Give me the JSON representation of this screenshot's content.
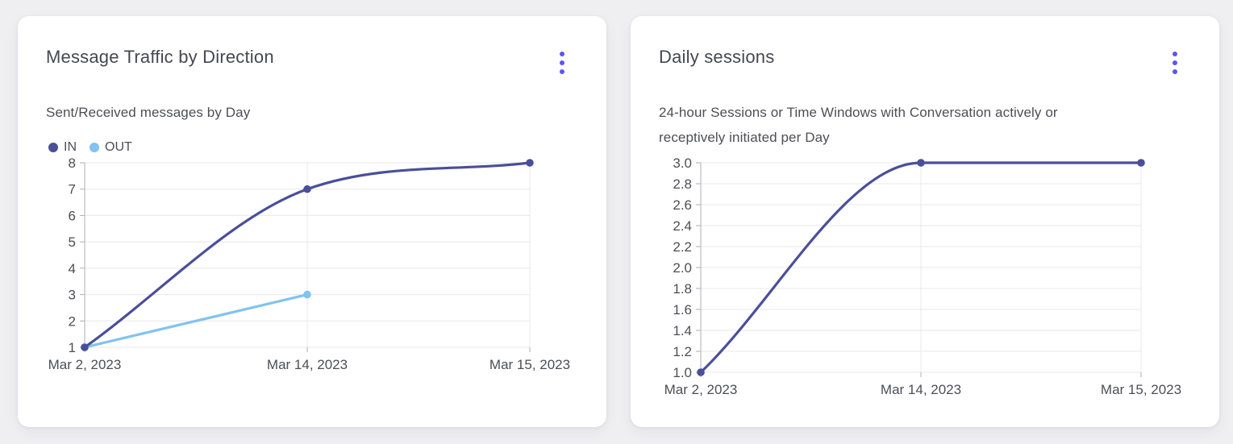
{
  "theme": {
    "page_bg": "#efeff2",
    "card_bg": "#ffffff",
    "title_color": "#464752",
    "text_color": "#4d4e57",
    "menu_dot_color": "#5b55f2",
    "grid_color": "#e8e8eb",
    "axis_color": "#aeaeb8",
    "icons": {
      "card_menu": "kebab-menu-icon"
    }
  },
  "chart_data": [
    {
      "type": "line",
      "title": "Message Traffic by Direction",
      "subtitle_lines": [
        "Sent/Received messages by Day"
      ],
      "categories": [
        "Mar 2, 2023",
        "Mar 14, 2023",
        "Mar 15, 2023"
      ],
      "series": [
        {
          "name": "IN",
          "color": "#4a4f99",
          "values": [
            1,
            7,
            8
          ]
        },
        {
          "name": "OUT",
          "color": "#82c3f0",
          "values": [
            1,
            3,
            null
          ]
        }
      ],
      "xlabel": "",
      "ylabel": "",
      "ylim": [
        1,
        8
      ],
      "ytick_step": 1,
      "y_decimals": 0,
      "grid": true,
      "legend_position": "top-left"
    },
    {
      "type": "line",
      "title": "Daily sessions",
      "subtitle_lines": [
        "24-hour Sessions or Time Windows with Conversation actively or",
        "receptively initiated per Day"
      ],
      "categories": [
        "Mar 2, 2023",
        "Mar 14, 2023",
        "Mar 15, 2023"
      ],
      "series": [
        {
          "name": "Daily sessions",
          "color": "#4a4f99",
          "values": [
            1.0,
            3.0,
            3.0
          ]
        }
      ],
      "xlabel": "",
      "ylabel": "",
      "ylim": [
        1.0,
        3.0
      ],
      "ytick_step": 0.2,
      "y_decimals": 1,
      "grid": true,
      "legend_position": "none"
    }
  ]
}
